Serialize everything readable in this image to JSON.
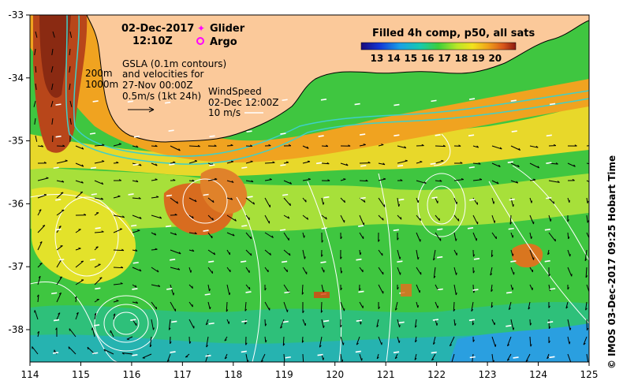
{
  "date": "02-Dec-2017",
  "time": "12:10Z",
  "legend": {
    "glider": "Glider",
    "argo": "Argo",
    "glider_color": "#ff00ff",
    "argo_color": "#ff00ff"
  },
  "gsla": {
    "line1": "GSLA (0.1m contours)",
    "line2": "and velocities for",
    "line3": "27-Nov 00:00Z",
    "line4": "0.5m/s (1kt 24h)"
  },
  "depth_labels": {
    "d200": "200m",
    "d1000": "1000m"
  },
  "wind": {
    "line1": "WindSpeed",
    "line2": "02-Dec 12:00Z",
    "line3": "10 m/s"
  },
  "colorbar": {
    "title": "Filled 4h comp, p50, all sats",
    "ticks": [
      "13",
      "14",
      "15",
      "16",
      "17",
      "18",
      "19",
      "20"
    ]
  },
  "axes": {
    "lon_ticks": [
      "114",
      "115",
      "116",
      "117",
      "118",
      "119",
      "120",
      "121",
      "122",
      "123",
      "124",
      "125"
    ],
    "lat_ticks": [
      "-33",
      "-34",
      "-35",
      "-36",
      "-37",
      "-38"
    ]
  },
  "credit": "© IMOS 03-Dec-2017 09:25 Hobart Time",
  "colors": {
    "land": "#fbc99a",
    "contour": "#ffffff",
    "isobath": "#3fd0c8",
    "vector": "#000000",
    "wind": "#ffffff"
  }
}
